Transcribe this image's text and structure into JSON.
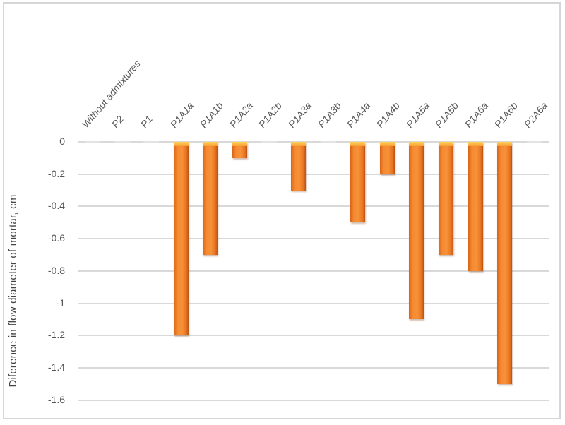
{
  "chart_data": {
    "type": "bar",
    "title": "",
    "xlabel": "",
    "ylabel": "Diference in flow diameter of mortar, cm",
    "ylim": [
      -1.6,
      0
    ],
    "yticks": [
      "0",
      "-0.2",
      "-0.4",
      "-0.6",
      "-0.8",
      "-1",
      "-1.2",
      "-1.4",
      "-1.6"
    ],
    "grid": true,
    "legend": null,
    "categories": [
      "Without admixtures",
      "P2",
      "P1",
      "P1A1a",
      "P1A1b",
      "P1A2a",
      "P1A2b",
      "P1A3a",
      "P1A3b",
      "P1A4a",
      "P1A4b",
      "P1A5a",
      "P1A5b",
      "P1A6a",
      "P1A6b",
      "P2A6a"
    ],
    "values": [
      0,
      0,
      0,
      -1.2,
      -0.7,
      -0.1,
      0,
      -0.3,
      0,
      -0.5,
      -0.2,
      -1.1,
      -0.7,
      -0.8,
      -1.5,
      0
    ],
    "colors": {
      "bar": "#f58a30",
      "bar_top": "#ffd25a",
      "grid": "#d9d9d9"
    }
  }
}
